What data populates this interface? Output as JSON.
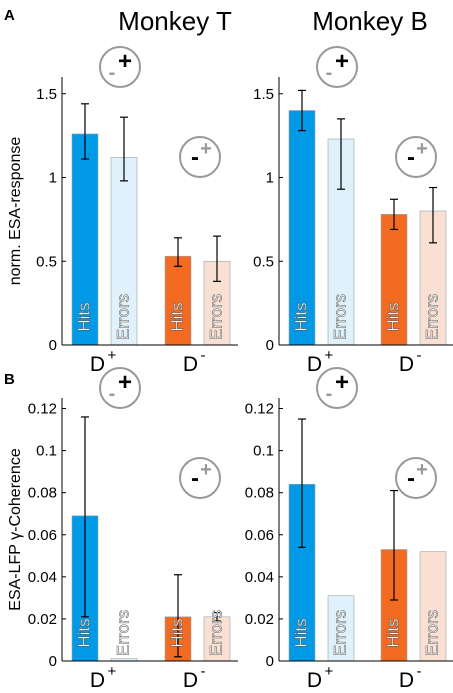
{
  "figure": {
    "panel_labels": [
      "A",
      "B"
    ],
    "column_titles": [
      "Monkey T",
      "Monkey B"
    ]
  },
  "chart_data": [
    {
      "type": "bar",
      "panel": "A",
      "title": "Monkey T",
      "ylabel": "norm. ESA-response",
      "ylim": [
        0,
        1.6
      ],
      "yticks": [
        "0",
        "0.5",
        "1",
        "1.5"
      ],
      "groups": [
        "D+",
        "D-"
      ],
      "bars": [
        {
          "group": "D+",
          "label": "Hits",
          "value": 1.26,
          "err_low": 1.11,
          "err_high": 1.44,
          "color": "#0099e6"
        },
        {
          "group": "D+",
          "label": "Errors",
          "value": 1.12,
          "err_low": 0.98,
          "err_high": 1.36,
          "color": "#dff1fa"
        },
        {
          "group": "D-",
          "label": "Hits",
          "value": 0.53,
          "err_low": 0.47,
          "err_high": 0.64,
          "color": "#f26b21"
        },
        {
          "group": "D-",
          "label": "Errors",
          "value": 0.5,
          "err_low": 0.38,
          "err_high": 0.65,
          "color": "#f9e0d2"
        }
      ],
      "grid": false,
      "icons": [
        {
          "name": "plus-icon",
          "group": "D+",
          "strong_sign": "+",
          "weak_sign": "-"
        },
        {
          "name": "minus-icon",
          "group": "D-",
          "strong_sign": "-",
          "weak_sign": "+"
        }
      ]
    },
    {
      "type": "bar",
      "panel": "A",
      "title": "Monkey B",
      "ylabel": "",
      "ylim": [
        0,
        1.6
      ],
      "yticks": [
        "0",
        "0.5",
        "1",
        "1.5"
      ],
      "groups": [
        "D+",
        "D-"
      ],
      "bars": [
        {
          "group": "D+",
          "label": "Hits",
          "value": 1.4,
          "err_low": 1.28,
          "err_high": 1.52,
          "color": "#0099e6"
        },
        {
          "group": "D+",
          "label": "Errors",
          "value": 1.23,
          "err_low": 0.93,
          "err_high": 1.35,
          "color": "#dff1fa"
        },
        {
          "group": "D-",
          "label": "Hits",
          "value": 0.78,
          "err_low": 0.69,
          "err_high": 0.87,
          "color": "#f26b21"
        },
        {
          "group": "D-",
          "label": "Errors",
          "value": 0.8,
          "err_low": 0.61,
          "err_high": 0.94,
          "color": "#f9e0d2"
        }
      ],
      "grid": false,
      "icons": [
        {
          "name": "plus-icon",
          "group": "D+",
          "strong_sign": "+",
          "weak_sign": "-"
        },
        {
          "name": "minus-icon",
          "group": "D-",
          "strong_sign": "-",
          "weak_sign": "+"
        }
      ]
    },
    {
      "type": "bar",
      "panel": "B",
      "title": "",
      "ylabel": "ESA-LFP γ-Coherence",
      "ylim": [
        0,
        0.125
      ],
      "yticks": [
        "0",
        "0.02",
        "0.04",
        "0.06",
        "0.08",
        "0.1",
        "0.12"
      ],
      "groups": [
        "D+",
        "D-"
      ],
      "bars": [
        {
          "group": "D+",
          "label": "Hits",
          "value": 0.069,
          "err_low": 0.021,
          "err_high": 0.116,
          "color": "#0099e6"
        },
        {
          "group": "D+",
          "label": "Errors",
          "value": 0.0012,
          "err_low": 0.0012,
          "err_high": 0.0012,
          "color": "#dff1fa"
        },
        {
          "group": "D-",
          "label": "Hits",
          "value": 0.021,
          "err_low": 0.002,
          "err_high": 0.041,
          "color": "#f26b21"
        },
        {
          "group": "D-",
          "label": "Errors",
          "value": 0.021,
          "err_low": 0.019,
          "err_high": 0.023,
          "color": "#f9e0d2"
        }
      ],
      "grid": false,
      "icons": [
        {
          "name": "plus-icon",
          "group": "D+",
          "strong_sign": "+",
          "weak_sign": "-"
        },
        {
          "name": "minus-icon",
          "group": "D-",
          "strong_sign": "-",
          "weak_sign": "+"
        }
      ]
    },
    {
      "type": "bar",
      "panel": "B",
      "title": "",
      "ylabel": "",
      "ylim": [
        0,
        0.125
      ],
      "yticks": [
        "0",
        "0.02",
        "0.04",
        "0.06",
        "0.08",
        "0.1",
        "0.12"
      ],
      "groups": [
        "D+",
        "D-"
      ],
      "bars": [
        {
          "group": "D+",
          "label": "Hits",
          "value": 0.084,
          "err_low": 0.054,
          "err_high": 0.115,
          "color": "#0099e6"
        },
        {
          "group": "D+",
          "label": "Errors",
          "value": 0.031,
          "err_low": 0.031,
          "err_high": 0.031,
          "color": "#dff1fa"
        },
        {
          "group": "D-",
          "label": "Hits",
          "value": 0.053,
          "err_low": 0.029,
          "err_high": 0.081,
          "color": "#f26b21"
        },
        {
          "group": "D-",
          "label": "Errors",
          "value": 0.052,
          "err_low": 0.052,
          "err_high": 0.052,
          "color": "#f9e0d2"
        }
      ],
      "grid": false,
      "icons": [
        {
          "name": "plus-icon",
          "group": "D+",
          "strong_sign": "+",
          "weak_sign": "-"
        },
        {
          "name": "minus-icon",
          "group": "D-",
          "strong_sign": "-",
          "weak_sign": "+"
        }
      ]
    }
  ]
}
